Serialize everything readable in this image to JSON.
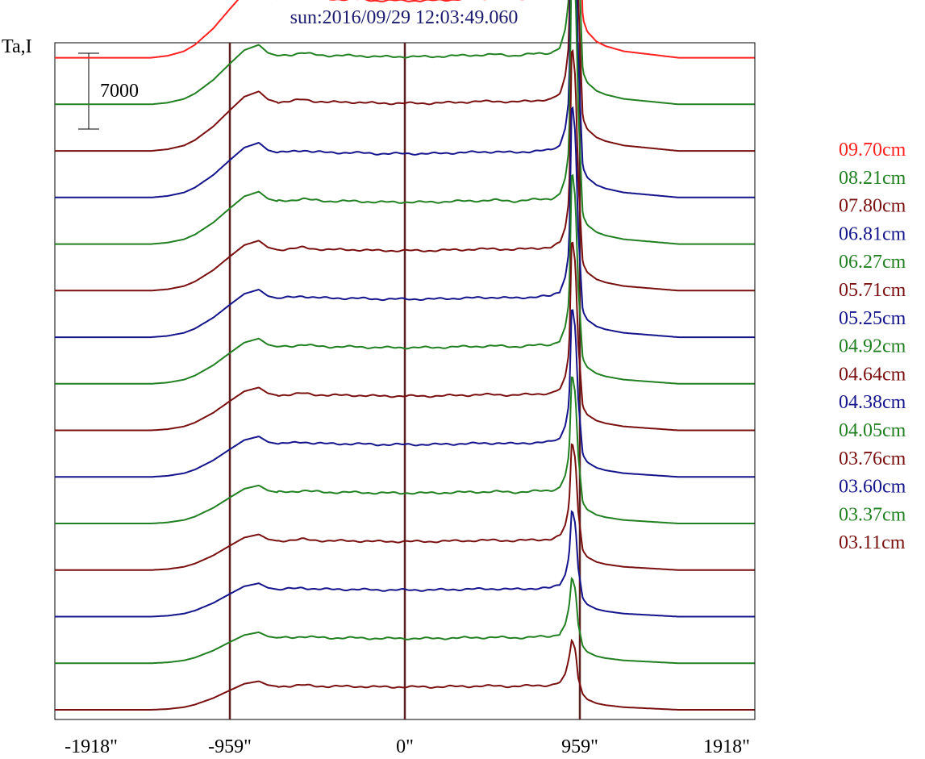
{
  "chart_data": {
    "type": "line",
    "title": "sun:2016/09/29 12:03:49.060",
    "ylabel": "Ta,I",
    "scale_bar_label": "7000",
    "scale_bar_value": 7000,
    "xlim": [
      -1918,
      1918
    ],
    "x_ticks": [
      {
        "value": -1918,
        "label": "-1918\""
      },
      {
        "value": -959,
        "label": "-959\""
      },
      {
        "value": 0,
        "label": "0\""
      },
      {
        "value": 959,
        "label": "959\""
      },
      {
        "value": 1918,
        "label": "1918\""
      }
    ],
    "vertical_lines": [
      -959,
      0,
      959
    ],
    "vertical_line_color": "#5a1e1e",
    "series_offset": 4300,
    "profile_x": [
      -1918,
      -1390,
      -1300,
      -1210,
      -1150,
      -1050,
      -959,
      -880,
      -800,
      -750,
      -700,
      -620,
      -560,
      -500,
      -420,
      -350,
      -280,
      -150,
      0,
      150,
      300,
      500,
      600,
      700,
      800,
      850,
      880,
      900,
      915,
      935,
      950,
      975,
      1000,
      1050,
      1100,
      1200,
      1350,
      1500,
      1918
    ],
    "series": [
      {
        "name": "09.70cm",
        "color": "#ff2020",
        "peak": 39000,
        "limb": 6000
      },
      {
        "name": "08.21cm",
        "color": "#218021",
        "peak": 33000,
        "limb": 5000
      },
      {
        "name": "07.80cm",
        "color": "#7a0f0f",
        "peak": 32000,
        "limb": 5000
      },
      {
        "name": "06.81cm",
        "color": "#14148c",
        "peak": 29000,
        "limb": 4600
      },
      {
        "name": "06.27cm",
        "color": "#218021",
        "peak": 28000,
        "limb": 4400
      },
      {
        "name": "05.71cm",
        "color": "#7a0f0f",
        "peak": 23000,
        "limb": 4200
      },
      {
        "name": "05.25cm",
        "color": "#14148c",
        "peak": 22000,
        "limb": 4000
      },
      {
        "name": "04.92cm",
        "color": "#218021",
        "peak": 20000,
        "limb": 3800
      },
      {
        "name": "04.64cm",
        "color": "#7a0f0f",
        "peak": 18000,
        "limb": 3600
      },
      {
        "name": "04.38cm",
        "color": "#14148c",
        "peak": 16000,
        "limb": 3400
      },
      {
        "name": "04.05cm",
        "color": "#218021",
        "peak": 14000,
        "limb": 3200
      },
      {
        "name": "03.76cm",
        "color": "#7a0f0f",
        "peak": 12000,
        "limb": 3000
      },
      {
        "name": "03.60cm",
        "color": "#14148c",
        "peak": 10000,
        "limb": 2800
      },
      {
        "name": "03.37cm",
        "color": "#218021",
        "peak": 8000,
        "limb": 2600
      },
      {
        "name": "03.11cm",
        "color": "#7a0f0f",
        "peak": 6500,
        "limb": 2400
      }
    ]
  }
}
